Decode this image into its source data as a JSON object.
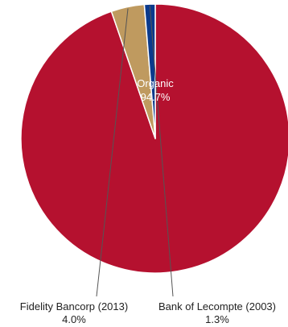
{
  "chart_data": {
    "type": "pie",
    "slices": [
      {
        "label": "Organic",
        "value": 94.7,
        "value_text": "94.7%",
        "color": "#b5112f"
      },
      {
        "label": "Fidelity Bancorp (2013)",
        "value": 4.0,
        "value_text": "4.0%",
        "color": "#bf9a5f"
      },
      {
        "label": "Bank of Lecompte (2003)",
        "value": 1.3,
        "value_text": "1.3%",
        "color": "#0b3a8c"
      }
    ],
    "start": "top",
    "direction": "clockwise",
    "slice_border_color": "#ffffff"
  }
}
